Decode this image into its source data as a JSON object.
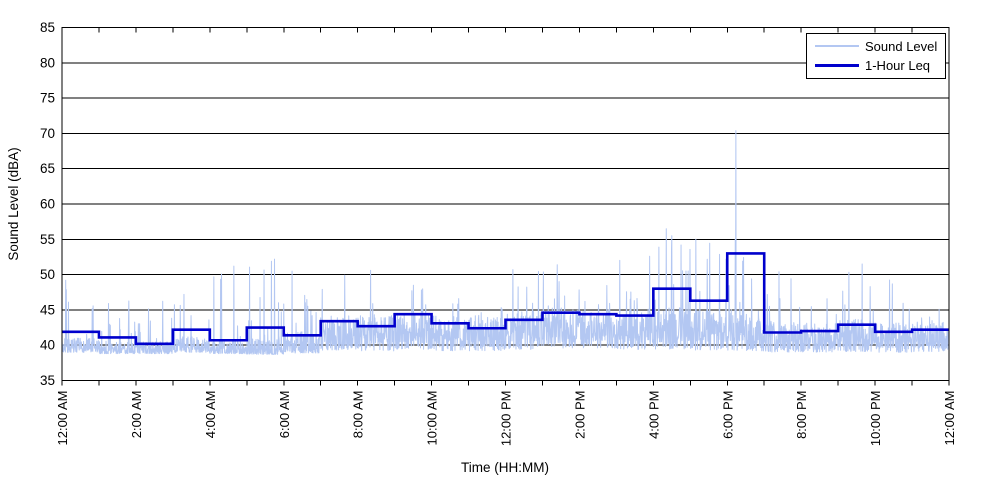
{
  "chart_data": {
    "type": "line",
    "title": "",
    "xlabel": "Time (HH:MM)",
    "ylabel": "Sound Level (dBA)",
    "ylim": [
      35,
      85
    ],
    "ytick_step": 5,
    "ytick_labels": [
      "35",
      "40",
      "45",
      "50",
      "55",
      "60",
      "65",
      "70",
      "75",
      "80",
      "85"
    ],
    "x_span_hours": 24,
    "xtick_label_every_hours": 2,
    "minor_tick_every_hours": 1,
    "xtick_labels": [
      "12:00 AM",
      "2:00 AM",
      "4:00 AM",
      "6:00 AM",
      "8:00 AM",
      "10:00 AM",
      "12:00 PM",
      "2:00 PM",
      "4:00 PM",
      "6:00 PM",
      "8:00 PM",
      "10:00 PM",
      "12:00 AM"
    ],
    "grid": "horizontal-only",
    "legend_position": "top-right",
    "legend": {
      "entries": [
        {
          "label": "Sound Level",
          "color": "#b3c7f2",
          "weight": 2
        },
        {
          "label": "1-Hour Leq",
          "color": "#0000cc",
          "weight": 3
        }
      ]
    },
    "series": [
      {
        "name": "Sound Level",
        "kind": "noisy-samples",
        "color": "#b3c7f2",
        "samples_per_minute": 2,
        "seed": 7,
        "profile_by_hour": [
          {
            "base": 39.0,
            "band": 2.0,
            "exp": 2.0,
            "spike_prob": 0.1,
            "spike_max": 49.0
          },
          {
            "base": 38.8,
            "band": 1.8,
            "exp": 2.0,
            "spike_prob": 0.08,
            "spike_max": 46.5
          },
          {
            "base": 38.8,
            "band": 1.8,
            "exp": 2.0,
            "spike_prob": 0.08,
            "spike_max": 47.0
          },
          {
            "base": 39.0,
            "band": 2.2,
            "exp": 2.0,
            "spike_prob": 0.09,
            "spike_max": 47.5
          },
          {
            "base": 38.8,
            "band": 1.8,
            "exp": 2.0,
            "spike_prob": 0.07,
            "spike_max": 51.0
          },
          {
            "base": 38.7,
            "band": 2.2,
            "exp": 2.0,
            "spike_prob": 0.08,
            "spike_max": 52.0
          },
          {
            "base": 38.9,
            "band": 3.0,
            "exp": 1.6,
            "spike_prob": 0.09,
            "spike_max": 50.5
          },
          {
            "base": 39.3,
            "band": 4.6,
            "exp": 1.3,
            "spike_prob": 0.05,
            "spike_max": 50.0
          },
          {
            "base": 39.2,
            "band": 5.0,
            "exp": 1.3,
            "spike_prob": 0.05,
            "spike_max": 50.6
          },
          {
            "base": 39.4,
            "band": 5.4,
            "exp": 1.2,
            "spike_prob": 0.04,
            "spike_max": 49.0
          },
          {
            "base": 39.2,
            "band": 5.0,
            "exp": 1.3,
            "spike_prob": 0.04,
            "spike_max": 48.0
          },
          {
            "base": 39.2,
            "band": 5.0,
            "exp": 1.3,
            "spike_prob": 0.05,
            "spike_max": 49.5
          },
          {
            "base": 39.4,
            "band": 5.4,
            "exp": 1.2,
            "spike_prob": 0.04,
            "spike_max": 50.7
          },
          {
            "base": 39.6,
            "band": 5.4,
            "exp": 1.2,
            "spike_prob": 0.05,
            "spike_max": 51.5
          },
          {
            "base": 39.6,
            "band": 5.4,
            "exp": 1.2,
            "spike_prob": 0.04,
            "spike_max": 50.0
          },
          {
            "base": 39.4,
            "band": 5.2,
            "exp": 1.25,
            "spike_prob": 0.06,
            "spike_max": 52.6
          },
          {
            "base": 39.4,
            "band": 6.0,
            "exp": 1.2,
            "spike_prob": 0.1,
            "spike_max": 56.5
          },
          {
            "base": 39.3,
            "band": 5.6,
            "exp": 1.25,
            "spike_prob": 0.07,
            "spike_max": 55.0
          },
          {
            "base": 39.2,
            "band": 5.4,
            "exp": 1.3,
            "spike_prob": 0.06,
            "spike_max": 53.0
          },
          {
            "base": 39.0,
            "band": 4.6,
            "exp": 1.4,
            "spike_prob": 0.05,
            "spike_max": 50.4
          },
          {
            "base": 39.0,
            "band": 4.2,
            "exp": 1.4,
            "spike_prob": 0.05,
            "spike_max": 50.0
          },
          {
            "base": 39.1,
            "band": 4.6,
            "exp": 1.4,
            "spike_prob": 0.06,
            "spike_max": 51.5
          },
          {
            "base": 39.0,
            "band": 4.2,
            "exp": 1.4,
            "spike_prob": 0.05,
            "spike_max": 50.0
          },
          {
            "base": 39.1,
            "band": 4.2,
            "exp": 1.4,
            "spike_prob": 0.05,
            "spike_max": 49.5
          }
        ],
        "notable_events": [
          {
            "t_hours": 0.1,
            "value": 49.2
          },
          {
            "t_hours": 4.65,
            "value": 51.2
          },
          {
            "t_hours": 5.75,
            "value": 52.2
          },
          {
            "t_hours": 8.35,
            "value": 50.6
          },
          {
            "t_hours": 12.2,
            "value": 50.7
          },
          {
            "t_hours": 13.4,
            "value": 51.4
          },
          {
            "t_hours": 15.9,
            "value": 52.6
          },
          {
            "t_hours": 16.15,
            "value": 53.9
          },
          {
            "t_hours": 16.35,
            "value": 56.5
          },
          {
            "t_hours": 16.5,
            "value": 55.5
          },
          {
            "t_hours": 16.75,
            "value": 54.2
          },
          {
            "t_hours": 17.15,
            "value": 55.0
          },
          {
            "t_hours": 18.22,
            "value": 55.0
          },
          {
            "t_hours": 18.235,
            "value": 70.4
          },
          {
            "t_hours": 19.4,
            "value": 50.4
          },
          {
            "t_hours": 21.65,
            "value": 51.5
          }
        ]
      },
      {
        "name": "1-Hour Leq",
        "kind": "hourly-step",
        "color": "#0000cc",
        "values": [
          41.9,
          41.1,
          40.2,
          42.2,
          40.7,
          42.5,
          41.4,
          43.4,
          42.7,
          44.4,
          43.1,
          42.4,
          43.6,
          44.6,
          44.4,
          44.2,
          48.0,
          46.3,
          53.0,
          41.8,
          42.0,
          42.9,
          41.9,
          42.2
        ]
      }
    ]
  },
  "colors": {
    "background": "#ffffff",
    "axis": "#000000",
    "grid": "#000000",
    "sound_level": "#b3c7f2",
    "leq": "#0000cc"
  }
}
